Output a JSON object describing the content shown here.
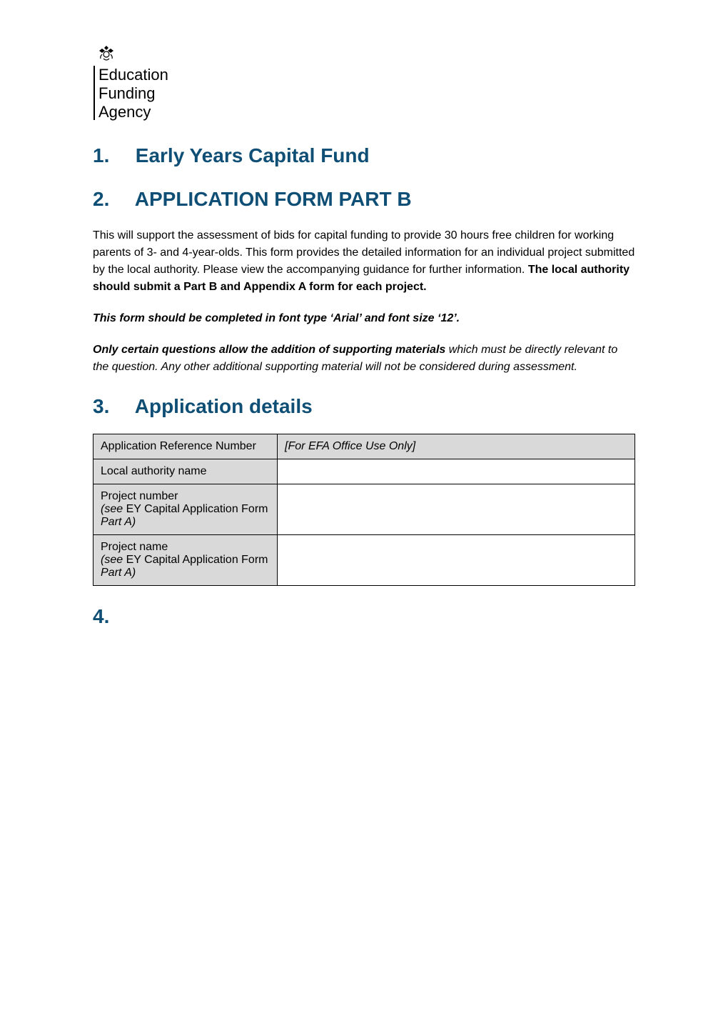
{
  "colors": {
    "heading": "#104f75",
    "text": "#000000",
    "cell_bg": "#d9d9d9",
    "border": "#000000",
    "page_bg": "#ffffff"
  },
  "logo": {
    "line1": "Education",
    "line2": "Funding",
    "line3": "Agency"
  },
  "headings": {
    "h1_num": "1.",
    "h1_text": "Early Years Capital Fund",
    "h2_num": "2.",
    "h2_text": "APPLICATION FORM PART B",
    "h3_num": "3.",
    "h3_text": "Application details",
    "h4_num": "4."
  },
  "paras": {
    "intro_plain": "This will support the assessment of bids for capital funding to provide 30 hours free children for working parents of 3- and 4-year-olds. This form provides the detailed information for an individual project submitted by the local authority. Please view the accompanying guidance for further information. ",
    "intro_bold": "The local authority should submit a Part B and Appendix A form for each project.",
    "font_note": "This form should be completed in font type ‘Arial’ and font size ‘12’.",
    "support_bold": "Only certain questions allow the addition of supporting materials",
    "support_rest": " which must be directly relevant to the question. Any other additional supporting material will not be considered during assessment."
  },
  "table": {
    "rows": [
      {
        "label_main": "Application Reference Number",
        "label_sub": "",
        "label_sub_plain": "",
        "value": "[For EFA Office Use Only]",
        "value_italic": true,
        "right_gray": true
      },
      {
        "label_main": "Local authority name",
        "label_sub": "",
        "label_sub_plain": "",
        "value": "",
        "value_italic": false,
        "right_gray": false
      },
      {
        "label_main": "Project number",
        "label_sub": "(see",
        "label_sub_plain": " EY Capital Application Form ",
        "label_sub_tail": "Part A)",
        "value": "",
        "value_italic": false,
        "right_gray": false
      },
      {
        "label_main": "Project name",
        "label_sub": "(see",
        "label_sub_plain": " EY Capital Application Form ",
        "label_sub_tail": "Part A)",
        "value": "",
        "value_italic": false,
        "right_gray": false
      }
    ]
  }
}
